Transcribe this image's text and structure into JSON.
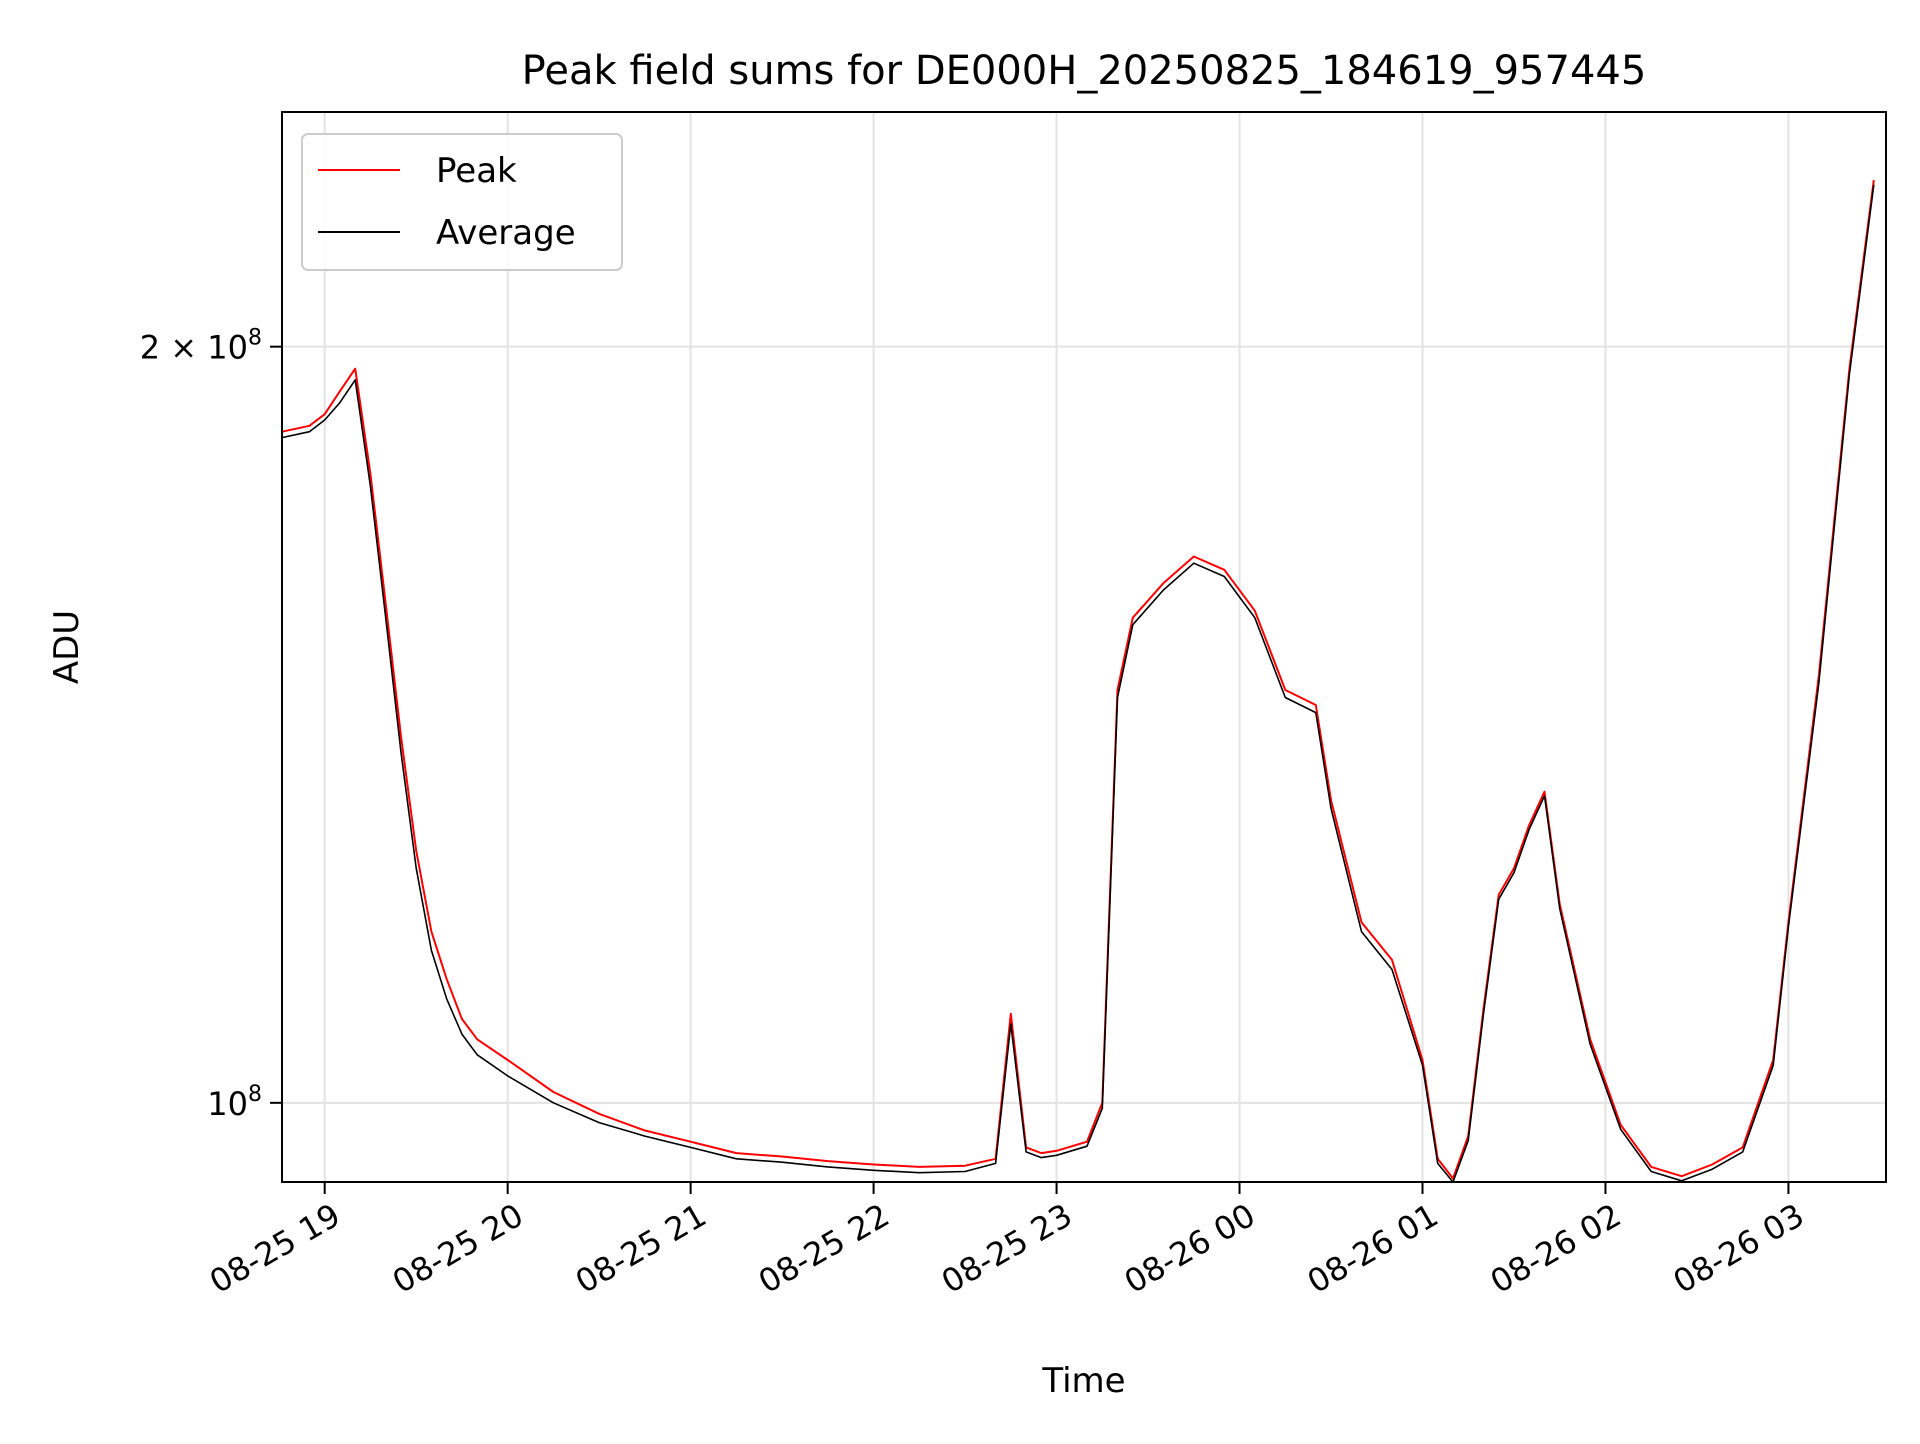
{
  "chart_data": {
    "type": "line",
    "title": "Peak field sums for DE000H_20250825_184619_957445",
    "xlabel": "Time",
    "ylabel": "ADU",
    "y_scale": "log",
    "xlim": [
      "2025-08-25 18:46",
      "2025-08-26 03:32"
    ],
    "ylim": [
      93000000,
      248000000
    ],
    "x_ticks": [
      "08-25 19",
      "08-25 20",
      "08-25 21",
      "08-25 22",
      "08-25 23",
      "08-26 00",
      "08-26 01",
      "08-26 02",
      "08-26 03"
    ],
    "x_tick_times": [
      "2025-08-25 19:00",
      "2025-08-25 20:00",
      "2025-08-25 21:00",
      "2025-08-25 22:00",
      "2025-08-25 23:00",
      "2025-08-26 00:00",
      "2025-08-26 01:00",
      "2025-08-26 02:00",
      "2025-08-26 03:00"
    ],
    "y_ticks": [
      {
        "value": 100000000,
        "mantissa": "",
        "exponent": "8"
      },
      {
        "value": 200000000,
        "mantissa": "2",
        "exponent": "8"
      }
    ],
    "grid": true,
    "legend": "upper-left",
    "series": [
      {
        "name": "Peak",
        "color": "#ff0000",
        "x": [
          "2025-08-25 18:46",
          "2025-08-25 18:55",
          "2025-08-25 19:00",
          "2025-08-25 19:05",
          "2025-08-25 19:10",
          "2025-08-25 19:15",
          "2025-08-25 19:20",
          "2025-08-25 19:25",
          "2025-08-25 19:30",
          "2025-08-25 19:35",
          "2025-08-25 19:40",
          "2025-08-25 19:45",
          "2025-08-25 19:50",
          "2025-08-25 20:00",
          "2025-08-25 20:15",
          "2025-08-25 20:30",
          "2025-08-25 20:45",
          "2025-08-25 21:00",
          "2025-08-25 21:15",
          "2025-08-25 21:30",
          "2025-08-25 21:45",
          "2025-08-25 22:00",
          "2025-08-25 22:15",
          "2025-08-25 22:30",
          "2025-08-25 22:40",
          "2025-08-25 22:45",
          "2025-08-25 22:50",
          "2025-08-25 22:55",
          "2025-08-25 23:00",
          "2025-08-25 23:10",
          "2025-08-25 23:15",
          "2025-08-25 23:20",
          "2025-08-25 23:25",
          "2025-08-25 23:35",
          "2025-08-25 23:45",
          "2025-08-25 23:55",
          "2025-08-26 00:05",
          "2025-08-26 00:15",
          "2025-08-26 00:25",
          "2025-08-26 00:30",
          "2025-08-26 00:40",
          "2025-08-26 00:50",
          "2025-08-26 01:00",
          "2025-08-26 01:05",
          "2025-08-26 01:10",
          "2025-08-26 01:15",
          "2025-08-26 01:20",
          "2025-08-26 01:25",
          "2025-08-26 01:30",
          "2025-08-26 01:35",
          "2025-08-26 01:40",
          "2025-08-26 01:45",
          "2025-08-26 01:55",
          "2025-08-26 02:05",
          "2025-08-26 02:15",
          "2025-08-26 02:25",
          "2025-08-26 02:35",
          "2025-08-26 02:45",
          "2025-08-26 02:55",
          "2025-08-26 03:00",
          "2025-08-26 03:10",
          "2025-08-26 03:20",
          "2025-08-26 03:28"
        ],
        "values": [
          185000000,
          186000000,
          188000000,
          192000000,
          196000000,
          178000000,
          158000000,
          140000000,
          126000000,
          117000000,
          112000000,
          108000000,
          106000000,
          104000000,
          101000000,
          99000000,
          97500000,
          96500000,
          95500000,
          95200000,
          94800000,
          94500000,
          94300000,
          94400000,
          95000000,
          108500000,
          96000000,
          95500000,
          95700000,
          96500000,
          100000000,
          146000000,
          156000000,
          161000000,
          165000000,
          163000000,
          157000000,
          146000000,
          144000000,
          132000000,
          118000000,
          114000000,
          104000000,
          95000000,
          93300000,
          97000000,
          109000000,
          121000000,
          124000000,
          129000000,
          133000000,
          120000000,
          106000000,
          98000000,
          94300000,
          93500000,
          94500000,
          96000000,
          104000000,
          118000000,
          148000000,
          196000000,
          233000000
        ]
      },
      {
        "name": "Average",
        "color": "#000000",
        "x": [
          "2025-08-25 18:46",
          "2025-08-25 18:55",
          "2025-08-25 19:00",
          "2025-08-25 19:05",
          "2025-08-25 19:10",
          "2025-08-25 19:15",
          "2025-08-25 19:20",
          "2025-08-25 19:25",
          "2025-08-25 19:30",
          "2025-08-25 19:35",
          "2025-08-25 19:40",
          "2025-08-25 19:45",
          "2025-08-25 19:50",
          "2025-08-25 20:00",
          "2025-08-25 20:15",
          "2025-08-25 20:30",
          "2025-08-25 20:45",
          "2025-08-25 21:00",
          "2025-08-25 21:15",
          "2025-08-25 21:30",
          "2025-08-25 21:45",
          "2025-08-25 22:00",
          "2025-08-25 22:15",
          "2025-08-25 22:30",
          "2025-08-25 22:40",
          "2025-08-25 22:45",
          "2025-08-25 22:50",
          "2025-08-25 22:55",
          "2025-08-25 23:00",
          "2025-08-25 23:10",
          "2025-08-25 23:15",
          "2025-08-25 23:20",
          "2025-08-25 23:25",
          "2025-08-25 23:35",
          "2025-08-25 23:45",
          "2025-08-25 23:55",
          "2025-08-26 00:05",
          "2025-08-26 00:15",
          "2025-08-26 00:25",
          "2025-08-26 00:30",
          "2025-08-26 00:40",
          "2025-08-26 00:50",
          "2025-08-26 01:00",
          "2025-08-26 01:05",
          "2025-08-26 01:10",
          "2025-08-26 01:15",
          "2025-08-26 01:20",
          "2025-08-26 01:25",
          "2025-08-26 01:30",
          "2025-08-26 01:35",
          "2025-08-26 01:40",
          "2025-08-26 01:45",
          "2025-08-26 01:55",
          "2025-08-26 02:05",
          "2025-08-26 02:15",
          "2025-08-26 02:25",
          "2025-08-26 02:35",
          "2025-08-26 02:45",
          "2025-08-26 02:55",
          "2025-08-26 03:00",
          "2025-08-26 03:10",
          "2025-08-26 03:20",
          "2025-08-26 03:28"
        ],
        "values": [
          184000000,
          185000000,
          187000000,
          190000000,
          194000000,
          176000000,
          156000000,
          138000000,
          124000000,
          115000000,
          110000000,
          106500000,
          104500000,
          102500000,
          100000000,
          98200000,
          97000000,
          96000000,
          95000000,
          94700000,
          94300000,
          94000000,
          93800000,
          93900000,
          94600000,
          107500000,
          95600000,
          95100000,
          95300000,
          96100000,
          99500000,
          145000000,
          155000000,
          160000000,
          164000000,
          162000000,
          156000000,
          145000000,
          143000000,
          131000000,
          117000000,
          113000000,
          103500000,
          94600000,
          93000000,
          96600000,
          108500000,
          120500000,
          123500000,
          128500000,
          132500000,
          119500000,
          105500000,
          97600000,
          93900000,
          93100000,
          94100000,
          95600000,
          103500000,
          117500000,
          147000000,
          195000000,
          232000000
        ]
      }
    ]
  }
}
